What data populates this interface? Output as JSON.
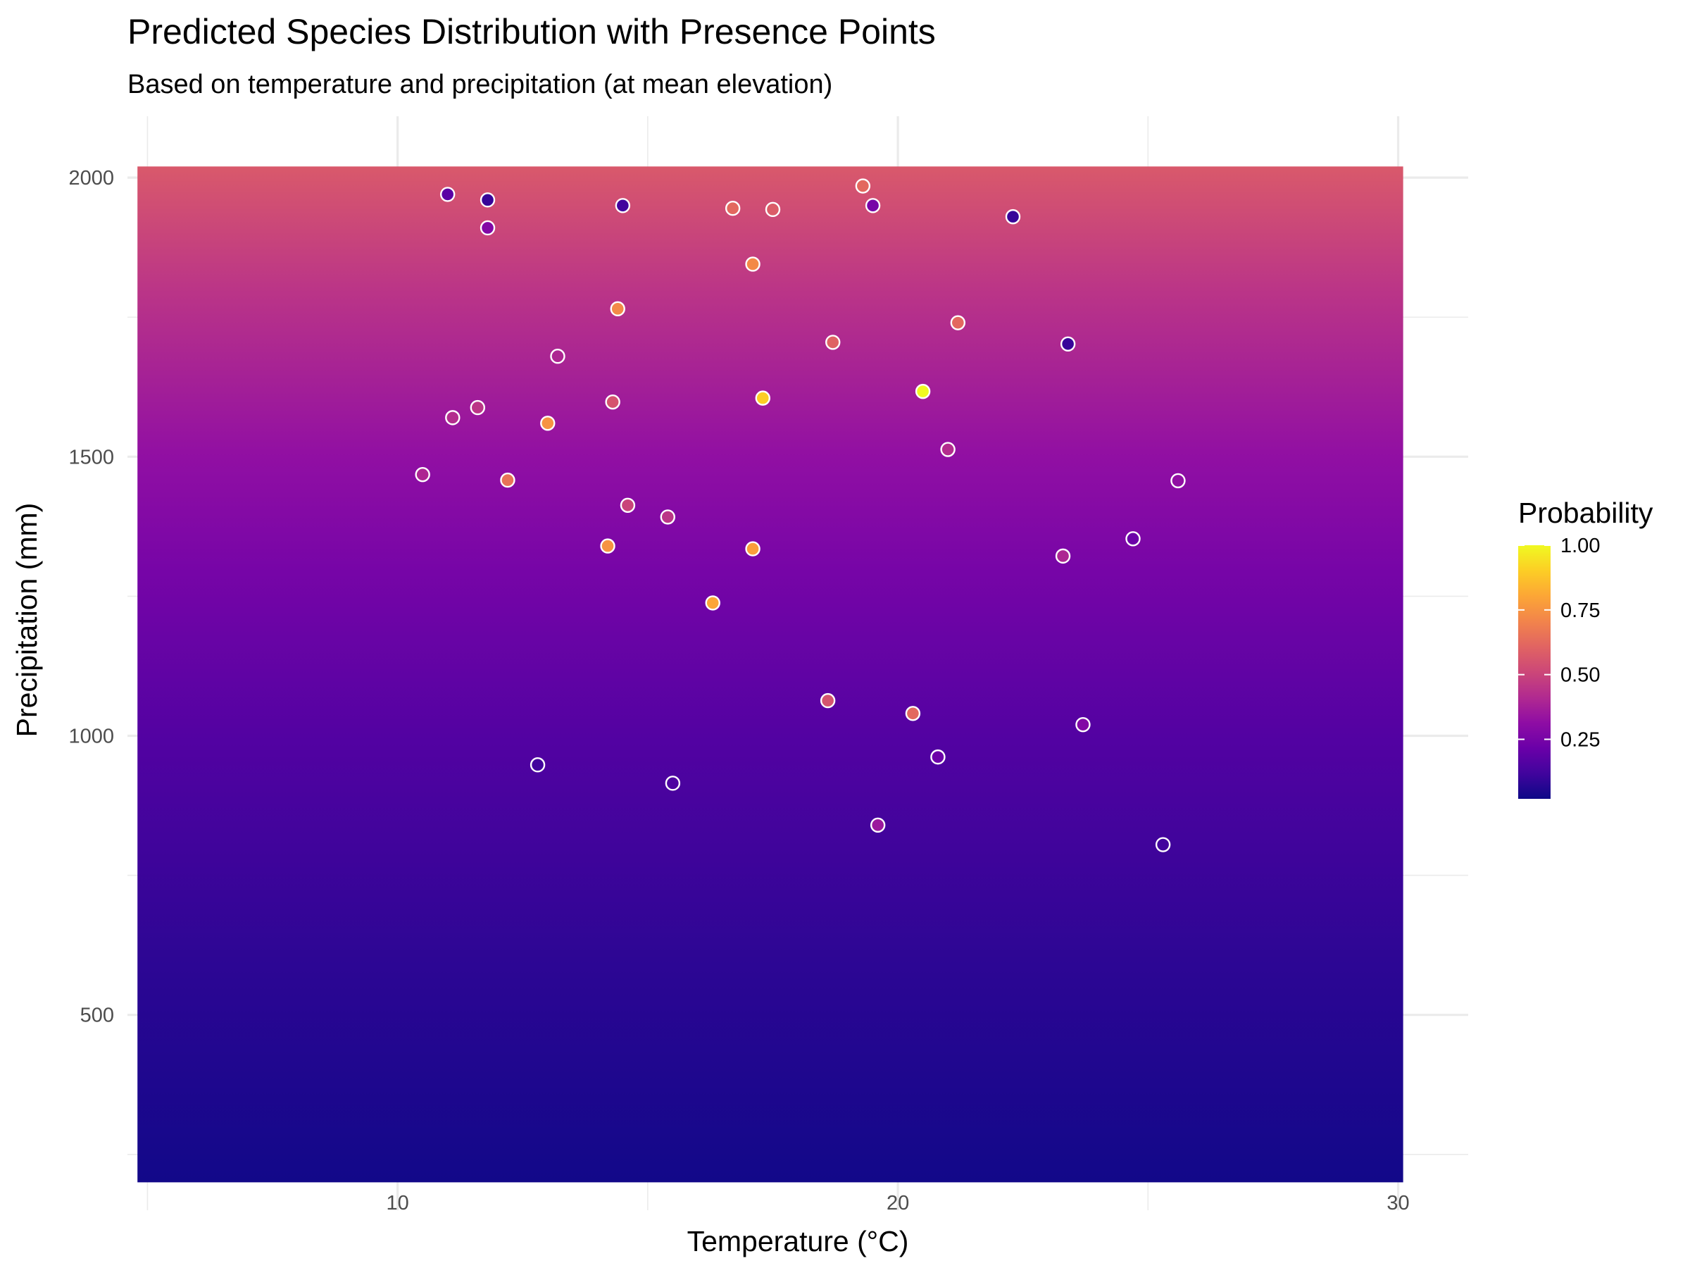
{
  "chart_data": {
    "type": "heatmap",
    "title": "Predicted Species Distribution with Presence Points",
    "subtitle": "Based on temperature and precipitation (at mean elevation)",
    "xlabel": "Temperature (°C)",
    "ylabel": "Precipitation (mm)",
    "xlim": [
      4.6,
      31.4
    ],
    "ylim": [
      150,
      2110
    ],
    "x_ticks": [
      10,
      20,
      30
    ],
    "y_ticks": [
      500,
      1000,
      1500,
      2000
    ],
    "x_tick_labels": [
      "10",
      "20",
      "30"
    ],
    "y_tick_labels": [
      "500",
      "1000",
      "1500",
      "2000"
    ],
    "grid": true,
    "surface": {
      "x_range": [
        4.8,
        30.1
      ],
      "y_range": [
        200,
        2020
      ],
      "description_of_gradient": "probability increases with precipitation",
      "probability_by_precipitation": [
        {
          "precip": 200,
          "p": 0.03
        },
        {
          "precip": 600,
          "p": 0.08
        },
        {
          "precip": 1000,
          "p": 0.16
        },
        {
          "precip": 1300,
          "p": 0.25
        },
        {
          "precip": 1500,
          "p": 0.32
        },
        {
          "precip": 1800,
          "p": 0.45
        },
        {
          "precip": 2020,
          "p": 0.57
        }
      ]
    },
    "legend": {
      "title": "Probability",
      "position": "right",
      "range": [
        0.02,
        1.0
      ],
      "ticks": [
        0.25,
        0.5,
        0.75,
        1.0
      ],
      "tick_labels": [
        "0.25",
        "0.50",
        "0.75",
        "1.00"
      ],
      "palette": "plasma"
    },
    "points": [
      {
        "temp": 11.0,
        "precip": 1970,
        "p": 0.18
      },
      {
        "temp": 11.8,
        "precip": 1960,
        "p": 0.1
      },
      {
        "temp": 11.8,
        "precip": 1910,
        "p": 0.28
      },
      {
        "temp": 14.5,
        "precip": 1950,
        "p": 0.12
      },
      {
        "temp": 16.7,
        "precip": 1945,
        "p": 0.62
      },
      {
        "temp": 17.5,
        "precip": 1943,
        "p": 0.58
      },
      {
        "temp": 19.3,
        "precip": 1985,
        "p": 0.62
      },
      {
        "temp": 19.5,
        "precip": 1950,
        "p": 0.25
      },
      {
        "temp": 22.3,
        "precip": 1930,
        "p": 0.1
      },
      {
        "temp": 17.1,
        "precip": 1845,
        "p": 0.72
      },
      {
        "temp": 14.4,
        "precip": 1765,
        "p": 0.72
      },
      {
        "temp": 21.2,
        "precip": 1740,
        "p": 0.62
      },
      {
        "temp": 18.7,
        "precip": 1705,
        "p": 0.6
      },
      {
        "temp": 23.4,
        "precip": 1702,
        "p": 0.1
      },
      {
        "temp": 13.2,
        "precip": 1680,
        "p": 0.4
      },
      {
        "temp": 17.3,
        "precip": 1605,
        "p": 0.9
      },
      {
        "temp": 20.5,
        "precip": 1617,
        "p": 1.0
      },
      {
        "temp": 14.3,
        "precip": 1598,
        "p": 0.55
      },
      {
        "temp": 11.6,
        "precip": 1588,
        "p": 0.45
      },
      {
        "temp": 11.1,
        "precip": 1570,
        "p": 0.42
      },
      {
        "temp": 13.0,
        "precip": 1560,
        "p": 0.75
      },
      {
        "temp": 21.0,
        "precip": 1513,
        "p": 0.42
      },
      {
        "temp": 10.5,
        "precip": 1468,
        "p": 0.4
      },
      {
        "temp": 12.2,
        "precip": 1458,
        "p": 0.65
      },
      {
        "temp": 25.6,
        "precip": 1457,
        "p": 0.32
      },
      {
        "temp": 14.6,
        "precip": 1413,
        "p": 0.5
      },
      {
        "temp": 15.4,
        "precip": 1392,
        "p": 0.45
      },
      {
        "temp": 24.7,
        "precip": 1353,
        "p": 0.22
      },
      {
        "temp": 14.2,
        "precip": 1340,
        "p": 0.75
      },
      {
        "temp": 17.1,
        "precip": 1335,
        "p": 0.78
      },
      {
        "temp": 23.3,
        "precip": 1322,
        "p": 0.4
      },
      {
        "temp": 16.3,
        "precip": 1238,
        "p": 0.8
      },
      {
        "temp": 18.6,
        "precip": 1063,
        "p": 0.55
      },
      {
        "temp": 20.3,
        "precip": 1040,
        "p": 0.62
      },
      {
        "temp": 23.7,
        "precip": 1020,
        "p": 0.28
      },
      {
        "temp": 20.8,
        "precip": 962,
        "p": 0.22
      },
      {
        "temp": 12.8,
        "precip": 948,
        "p": 0.12
      },
      {
        "temp": 15.5,
        "precip": 915,
        "p": 0.15
      },
      {
        "temp": 19.6,
        "precip": 840,
        "p": 0.35
      },
      {
        "temp": 25.3,
        "precip": 805,
        "p": 0.12
      }
    ]
  }
}
